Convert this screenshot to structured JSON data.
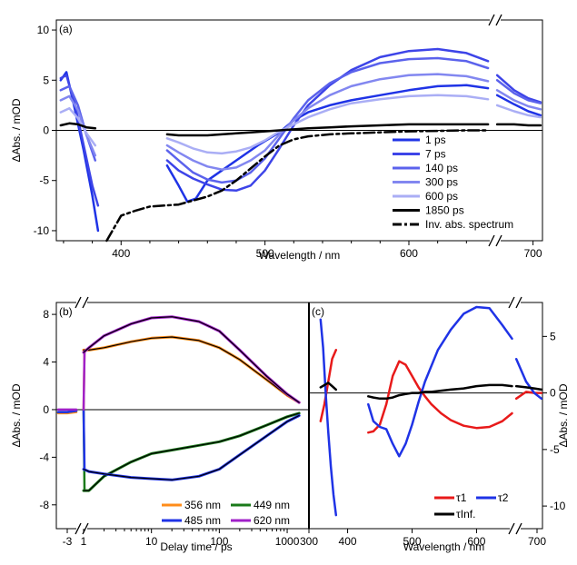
{
  "chart_data": [
    {
      "panel": "(a)",
      "type": "line",
      "xlabel": "Wavelength / nm",
      "ylabel": "ΔAbs. / mOD",
      "xlim": [
        355,
        710
      ],
      "x_break": 660,
      "ylim": [
        -11,
        11
      ],
      "x_ticks": [
        "400",
        "500",
        "600",
        "700"
      ],
      "y_ticks": [
        "-10",
        "-5",
        "0",
        "5",
        "10"
      ],
      "legend_position": "bottom-right",
      "series": [
        {
          "name": "1 ps",
          "color": "#1f33e6",
          "x": [
            358,
            362,
            368,
            374,
            380,
            384,
            432,
            440,
            446,
            452,
            460,
            470,
            480,
            495,
            510,
            520,
            530,
            545,
            560,
            580,
            600,
            620,
            640,
            655,
            662,
            680,
            695,
            708
          ],
          "y": [
            5.0,
            5.8,
            2.0,
            -2.0,
            -6.5,
            -10.0,
            -3.5,
            -5.5,
            -7.1,
            -6.8,
            -5.0,
            -4.0,
            -3.0,
            -1.5,
            -0.2,
            1.0,
            1.8,
            2.5,
            3.0,
            3.5,
            4.0,
            4.4,
            4.5,
            4.2,
            3.5,
            2.6,
            1.9,
            1.5
          ]
        },
        {
          "name": "7 ps",
          "color": "#3d44e8",
          "x": [
            358,
            362,
            368,
            374,
            380,
            384,
            432,
            440,
            450,
            460,
            470,
            480,
            490,
            500,
            510,
            520,
            530,
            545,
            560,
            580,
            600,
            620,
            640,
            655,
            662,
            680,
            695,
            708
          ],
          "y": [
            5.2,
            5.5,
            2.5,
            -1.5,
            -5.5,
            -7.5,
            -3.0,
            -4.0,
            -4.8,
            -5.4,
            -5.9,
            -6.0,
            -5.5,
            -4.0,
            -1.8,
            0.5,
            2.5,
            4.5,
            6.0,
            7.3,
            7.9,
            8.1,
            7.7,
            6.9,
            5.5,
            4.0,
            3.2,
            2.8
          ]
        },
        {
          "name": "140 ps",
          "color": "#5b62ec",
          "x": [
            358,
            364,
            370,
            376,
            382,
            432,
            440,
            450,
            460,
            470,
            480,
            490,
            500,
            510,
            520,
            530,
            545,
            560,
            580,
            600,
            620,
            640,
            655,
            662,
            680,
            695,
            708
          ],
          "y": [
            4.0,
            4.4,
            2.5,
            -0.5,
            -3.0,
            -2.0,
            -3.0,
            -4.2,
            -4.9,
            -5.2,
            -5.0,
            -4.2,
            -2.8,
            -0.8,
            1.2,
            3.0,
            4.7,
            5.8,
            6.7,
            7.1,
            7.2,
            6.9,
            6.2,
            5.0,
            3.7,
            3.0,
            2.7
          ]
        },
        {
          "name": "300 ps",
          "color": "#8287f0",
          "x": [
            358,
            364,
            370,
            376,
            382,
            432,
            440,
            450,
            460,
            470,
            480,
            490,
            500,
            510,
            520,
            530,
            545,
            560,
            580,
            600,
            620,
            640,
            655,
            662,
            680,
            695,
            708
          ],
          "y": [
            3.0,
            3.4,
            2.0,
            -0.5,
            -2.5,
            -1.5,
            -2.2,
            -3.0,
            -3.6,
            -3.9,
            -3.7,
            -3.0,
            -2.0,
            -0.4,
            1.0,
            2.2,
            3.5,
            4.4,
            5.1,
            5.5,
            5.6,
            5.4,
            4.9,
            4.0,
            3.0,
            2.4,
            2.1
          ]
        },
        {
          "name": "600 ps",
          "color": "#aaaef5",
          "x": [
            358,
            364,
            370,
            376,
            382,
            432,
            440,
            450,
            460,
            470,
            480,
            490,
            500,
            510,
            520,
            530,
            545,
            560,
            580,
            600,
            620,
            640,
            655,
            662,
            680,
            695,
            708
          ],
          "y": [
            1.8,
            2.2,
            1.2,
            -0.3,
            -1.5,
            -0.8,
            -1.2,
            -1.8,
            -2.2,
            -2.3,
            -2.1,
            -1.7,
            -1.0,
            -0.1,
            0.6,
            1.3,
            2.1,
            2.7,
            3.1,
            3.4,
            3.5,
            3.4,
            3.1,
            2.5,
            1.9,
            1.5,
            1.3
          ]
        },
        {
          "name": "1850 ps",
          "color": "#000000",
          "x": [
            358,
            364,
            370,
            376,
            382,
            432,
            440,
            450,
            460,
            470,
            480,
            490,
            500,
            510,
            520,
            530,
            545,
            560,
            580,
            600,
            620,
            640,
            655,
            662,
            680,
            695,
            708
          ],
          "y": [
            0.5,
            0.7,
            0.6,
            0.3,
            0.2,
            -0.4,
            -0.5,
            -0.5,
            -0.5,
            -0.4,
            -0.3,
            -0.2,
            -0.1,
            0.0,
            0.1,
            0.2,
            0.3,
            0.4,
            0.5,
            0.6,
            0.6,
            0.6,
            0.6,
            0.6,
            0.6,
            0.5,
            0.5
          ]
        },
        {
          "name": "Inv. abs. spectrum",
          "color": "#000000",
          "dash": true,
          "x": [
            390,
            400,
            410,
            420,
            430,
            440,
            450,
            460,
            470,
            480,
            490,
            500,
            510,
            520,
            530,
            545,
            560,
            580,
            600,
            620,
            640,
            655
          ],
          "y": [
            -11.0,
            -8.5,
            -8.0,
            -7.6,
            -7.5,
            -7.4,
            -7.0,
            -6.6,
            -6.0,
            -5.0,
            -3.8,
            -2.6,
            -1.5,
            -0.9,
            -0.6,
            -0.4,
            -0.3,
            -0.2,
            -0.1,
            -0.05,
            0.0,
            0.0
          ]
        }
      ]
    },
    {
      "panel": "(b)",
      "type": "line",
      "xlabel": "Delay time / ps",
      "ylabel": "ΔAbs. / mOD",
      "xscale": "log",
      "x_break": 1,
      "xlim": [
        0.7,
        1850
      ],
      "ylim": [
        -10,
        9
      ],
      "x_ticks": [
        "-3",
        "1",
        "10",
        "100",
        "1000"
      ],
      "y_ticks": [
        "-8",
        "-4",
        "0",
        "4",
        "8"
      ],
      "legend_position": "bottom",
      "series": [
        {
          "name": "356 nm",
          "color": "#ff8c1a",
          "pre": [
            -0.3,
            -0.3,
            -0.2
          ],
          "x": [
            1,
            1.2,
            2,
            5,
            10,
            20,
            50,
            100,
            200,
            500,
            1000,
            1500
          ],
          "y": [
            5.0,
            5.0,
            5.2,
            5.7,
            6.0,
            6.1,
            5.8,
            5.2,
            4.2,
            2.5,
            1.2,
            0.6
          ]
        },
        {
          "name": "449 nm",
          "color": "#1a7a1a",
          "pre": [
            -0.2,
            -0.2,
            -0.1
          ],
          "x": [
            1,
            1.2,
            2,
            5,
            10,
            20,
            50,
            100,
            200,
            500,
            1000,
            1500
          ],
          "y": [
            -6.8,
            -6.8,
            -5.6,
            -4.4,
            -3.7,
            -3.4,
            -3.0,
            -2.7,
            -2.2,
            -1.3,
            -0.6,
            -0.3
          ]
        },
        {
          "name": "485 nm",
          "color": "#1f33e6",
          "pre": [
            -0.2,
            -0.2,
            -0.1
          ],
          "x": [
            1,
            1.2,
            2,
            5,
            10,
            20,
            50,
            100,
            200,
            500,
            1000,
            1500
          ],
          "y": [
            -5.0,
            -5.2,
            -5.4,
            -5.7,
            -5.8,
            -5.9,
            -5.6,
            -5.0,
            -3.8,
            -2.2,
            -1.0,
            -0.5
          ]
        },
        {
          "name": "620 nm",
          "color": "#a020c8",
          "pre": [
            0.0,
            0.0,
            0.0
          ],
          "x": [
            1,
            1.2,
            2,
            5,
            10,
            20,
            50,
            100,
            200,
            500,
            1000,
            1500
          ],
          "y": [
            4.8,
            5.2,
            6.2,
            7.2,
            7.7,
            7.8,
            7.4,
            6.6,
            5.0,
            2.8,
            1.3,
            0.6
          ]
        }
      ]
    },
    {
      "panel": "(c)",
      "type": "line",
      "xlabel": "Wavelength / nm",
      "ylabel": "ΔAbs. / mOD",
      "xlim": [
        340,
        710
      ],
      "x_break": 660,
      "ylim": [
        -12,
        8
      ],
      "x_ticks": [
        "300",
        "400",
        "500",
        "600",
        "700"
      ],
      "y_ticks": [
        "-10",
        "-5",
        "0",
        "5"
      ],
      "legend_position": "bottom-right",
      "series": [
        {
          "name": "τ1",
          "color": "#e81a1a",
          "x": [
            358,
            364,
            370,
            376,
            382,
            432,
            440,
            450,
            460,
            470,
            480,
            490,
            500,
            510,
            520,
            530,
            545,
            560,
            580,
            600,
            620,
            640,
            655,
            662,
            680,
            695,
            708
          ],
          "y": [
            -2.5,
            -1.0,
            1.0,
            3.0,
            3.8,
            -3.5,
            -3.4,
            -2.8,
            -1.0,
            1.5,
            2.8,
            2.5,
            1.5,
            0.5,
            -0.3,
            -1.0,
            -1.8,
            -2.4,
            -2.9,
            -3.1,
            -3.0,
            -2.5,
            -1.8,
            -0.5,
            0.1,
            0.0,
            0.0
          ]
        },
        {
          "name": "τ2",
          "color": "#1f33e6",
          "x": [
            358,
            362,
            366,
            370,
            374,
            378,
            382,
            432,
            440,
            450,
            460,
            470,
            480,
            490,
            500,
            510,
            520,
            540,
            560,
            580,
            600,
            620,
            640,
            655,
            662,
            680,
            695,
            708
          ],
          "y": [
            6.5,
            4.0,
            0.0,
            -3.5,
            -6.5,
            -9.0,
            -10.8,
            -1.0,
            -2.5,
            -3.0,
            -3.2,
            -4.5,
            -5.6,
            -4.5,
            -2.8,
            -0.8,
            1.0,
            3.8,
            5.6,
            7.0,
            7.6,
            7.5,
            6.0,
            4.8,
            3.0,
            1.0,
            0.0,
            -0.5
          ]
        },
        {
          "name": "τInf.",
          "color": "#000000",
          "x": [
            358,
            364,
            370,
            376,
            382,
            432,
            440,
            450,
            460,
            470,
            480,
            490,
            500,
            510,
            520,
            530,
            545,
            560,
            580,
            600,
            620,
            640,
            655,
            662,
            680,
            695,
            708
          ],
          "y": [
            0.5,
            0.7,
            0.9,
            0.6,
            0.3,
            -0.3,
            -0.4,
            -0.5,
            -0.5,
            -0.4,
            -0.2,
            -0.1,
            0.0,
            0.0,
            0.1,
            0.1,
            0.2,
            0.3,
            0.4,
            0.6,
            0.7,
            0.7,
            0.6,
            0.6,
            0.5,
            0.4,
            0.3
          ]
        }
      ]
    }
  ]
}
